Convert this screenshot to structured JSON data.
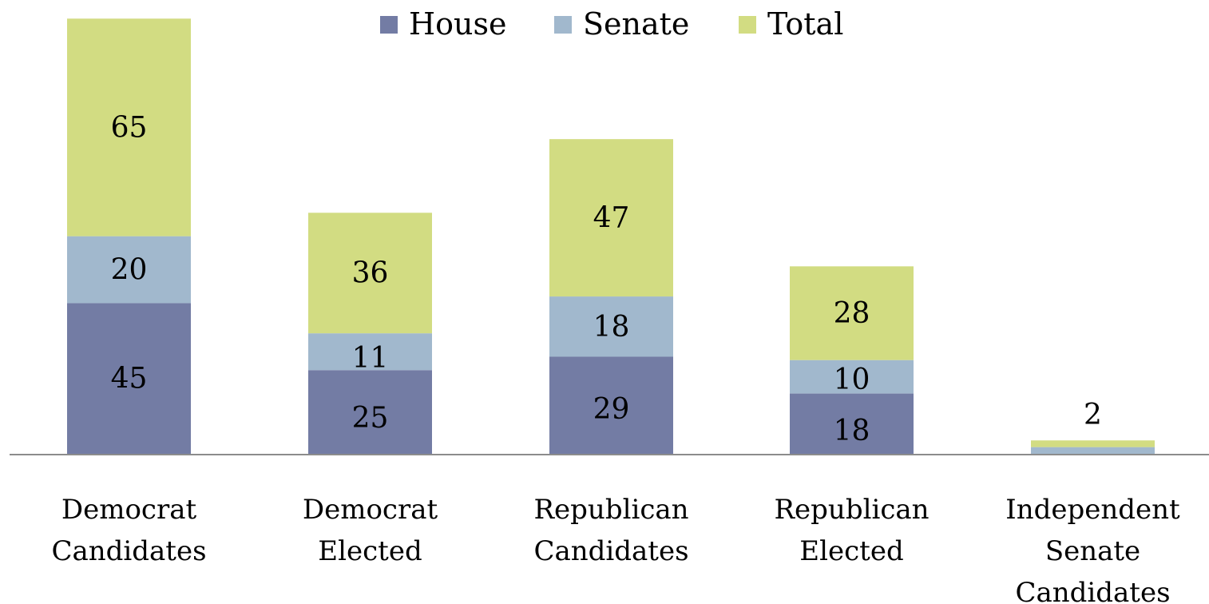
{
  "chart_data": {
    "type": "bar",
    "stacked": true,
    "categories": [
      [
        "Democrat",
        "Candidates"
      ],
      [
        "Democrat",
        "Elected"
      ],
      [
        "Republican",
        "Candidates"
      ],
      [
        "Republican",
        "Elected"
      ],
      [
        "Independent",
        "Senate",
        "Candidates"
      ]
    ],
    "series": [
      {
        "name": "House",
        "color": "#737ca4",
        "values": [
          45,
          25,
          29,
          18,
          0
        ]
      },
      {
        "name": "Senate",
        "color": "#a1b8cd",
        "values": [
          20,
          11,
          18,
          10,
          2
        ]
      },
      {
        "name": "Total",
        "color": "#d2dc82",
        "values": [
          65,
          36,
          47,
          28,
          2
        ]
      }
    ],
    "data_labels": [
      [
        "45",
        "20",
        "65"
      ],
      [
        "25",
        "11",
        "36"
      ],
      [
        "29",
        "18",
        "47"
      ],
      [
        "18",
        "10",
        "28"
      ],
      [
        "",
        "",
        "2"
      ]
    ],
    "legend_position": "top-center",
    "ylim": [
      0,
      130
    ],
    "grid": false,
    "axis_color": "#8c8c8c"
  }
}
